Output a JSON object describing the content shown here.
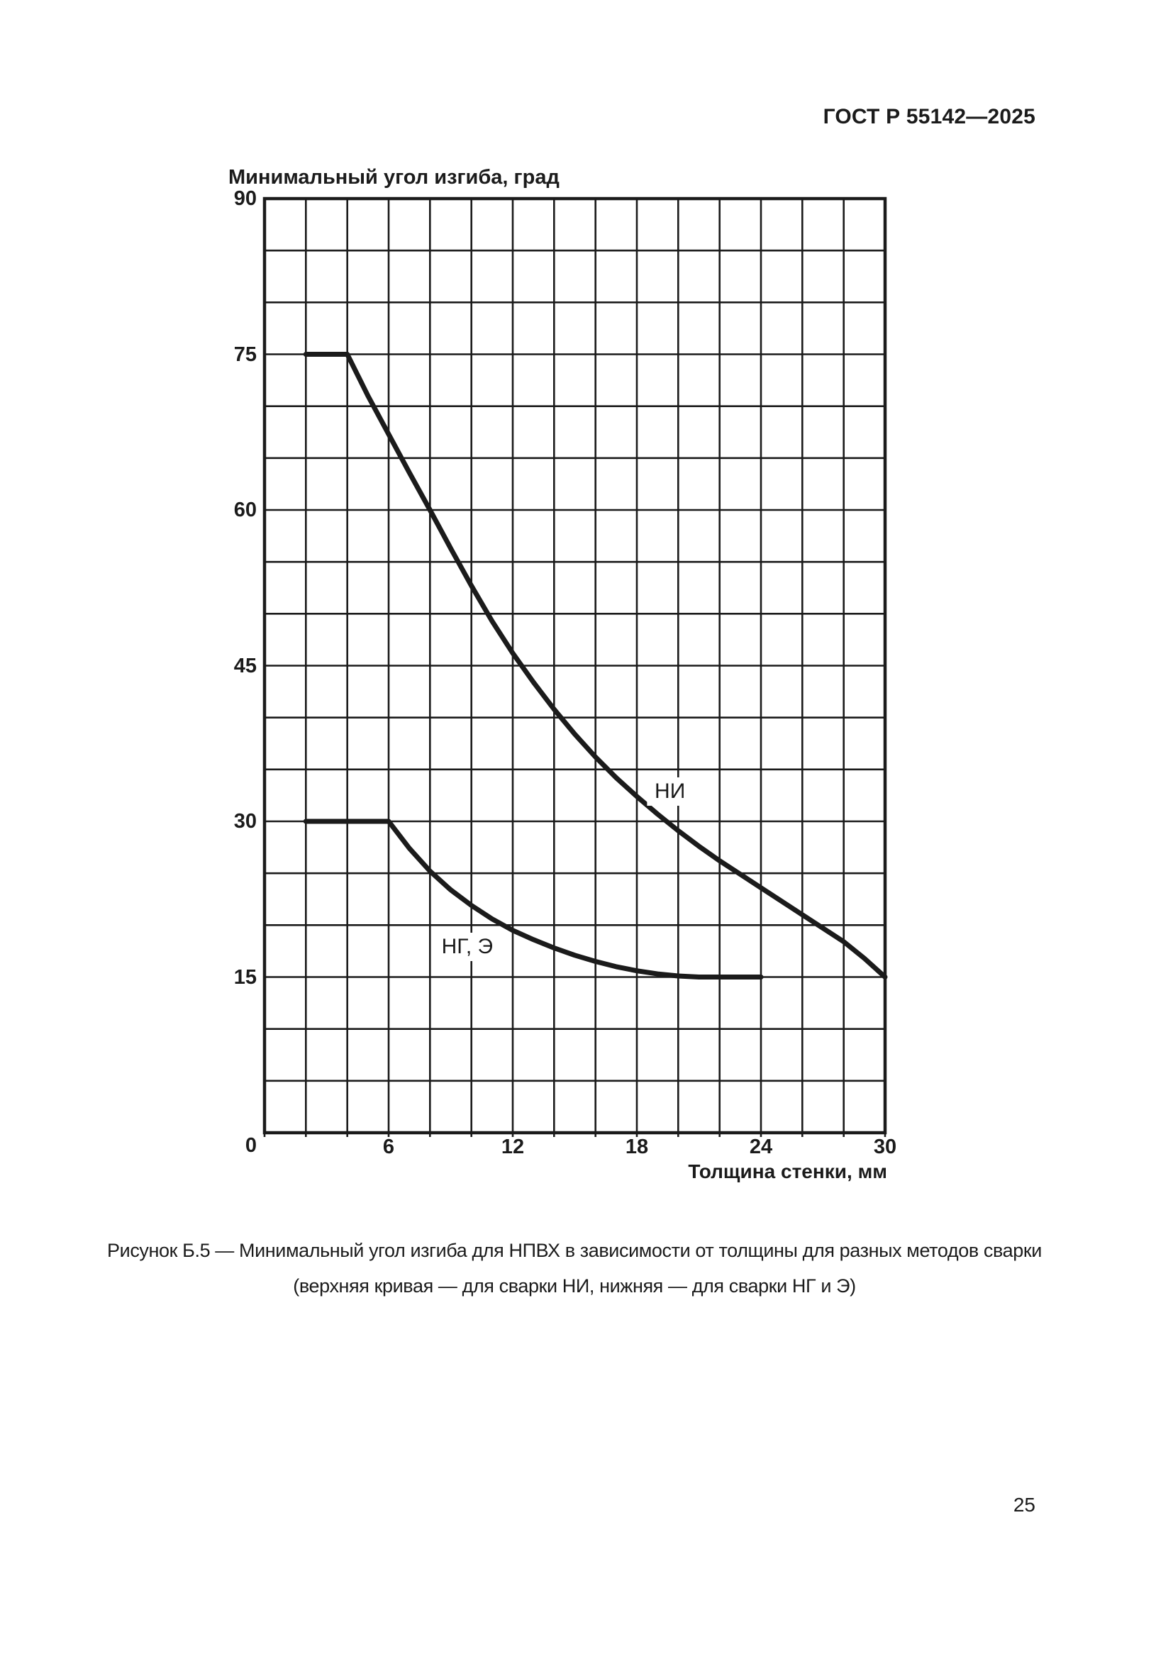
{
  "page": {
    "header": "ГОСТ Р 55142—2025",
    "page_number": "25"
  },
  "caption": {
    "line1": "Рисунок Б.5 — Минимальный угол изгиба для НПВХ в зависимости от толщины для разных методов сварки",
    "line2": "(верхняя кривая — для сварки НИ, нижняя — для сварки НГ и Э)"
  },
  "chart_data": {
    "type": "line",
    "title": "",
    "ylabel": "Минимальный угол изгиба, град",
    "xlabel": "Толщина стенки, мм",
    "xlim": [
      0,
      30
    ],
    "ylim": [
      0,
      90
    ],
    "x_minor_step": 2,
    "y_minor_step": 5,
    "x_ticks": [
      6,
      12,
      18,
      24,
      30
    ],
    "y_ticks": [
      90,
      75,
      60,
      45,
      30,
      15
    ],
    "origin_label": "0",
    "grid": true,
    "legend_position": "inline-curve-labels",
    "line_color": "#1b1b1b",
    "series": [
      {
        "name": "НИ",
        "label": "НИ",
        "label_at": [
          19.6,
          32.9
        ],
        "points": [
          [
            2,
            75
          ],
          [
            4,
            75
          ],
          [
            5,
            71
          ],
          [
            6,
            67.3
          ],
          [
            7,
            63.6
          ],
          [
            8,
            60
          ],
          [
            9,
            56.3
          ],
          [
            10,
            52.7
          ],
          [
            11,
            49.3
          ],
          [
            12,
            46.2
          ],
          [
            13,
            43.4
          ],
          [
            14,
            40.8
          ],
          [
            15,
            38.4
          ],
          [
            16,
            36.2
          ],
          [
            17,
            34.2
          ],
          [
            18,
            32.4
          ],
          [
            19,
            30.7
          ],
          [
            20,
            29.1
          ],
          [
            21,
            27.6
          ],
          [
            22,
            26.2
          ],
          [
            23,
            24.9
          ],
          [
            24,
            23.6
          ],
          [
            25,
            22.3
          ],
          [
            26,
            21
          ],
          [
            27,
            19.7
          ],
          [
            28,
            18.4
          ],
          [
            29,
            16.8
          ],
          [
            30,
            15
          ]
        ]
      },
      {
        "name": "НГ, Э",
        "label": "НГ, Э",
        "label_at": [
          9.8,
          17.9
        ],
        "points": [
          [
            2,
            30
          ],
          [
            6,
            30
          ],
          [
            7,
            27.4
          ],
          [
            8,
            25.2
          ],
          [
            9,
            23.4
          ],
          [
            10,
            21.9
          ],
          [
            11,
            20.6
          ],
          [
            12,
            19.5
          ],
          [
            13,
            18.6
          ],
          [
            14,
            17.8
          ],
          [
            15,
            17.1
          ],
          [
            16,
            16.5
          ],
          [
            17,
            16
          ],
          [
            18,
            15.6
          ],
          [
            19,
            15.3
          ],
          [
            20,
            15.1
          ],
          [
            21,
            15
          ],
          [
            22,
            15
          ],
          [
            23,
            15
          ],
          [
            24,
            15
          ]
        ]
      }
    ]
  }
}
